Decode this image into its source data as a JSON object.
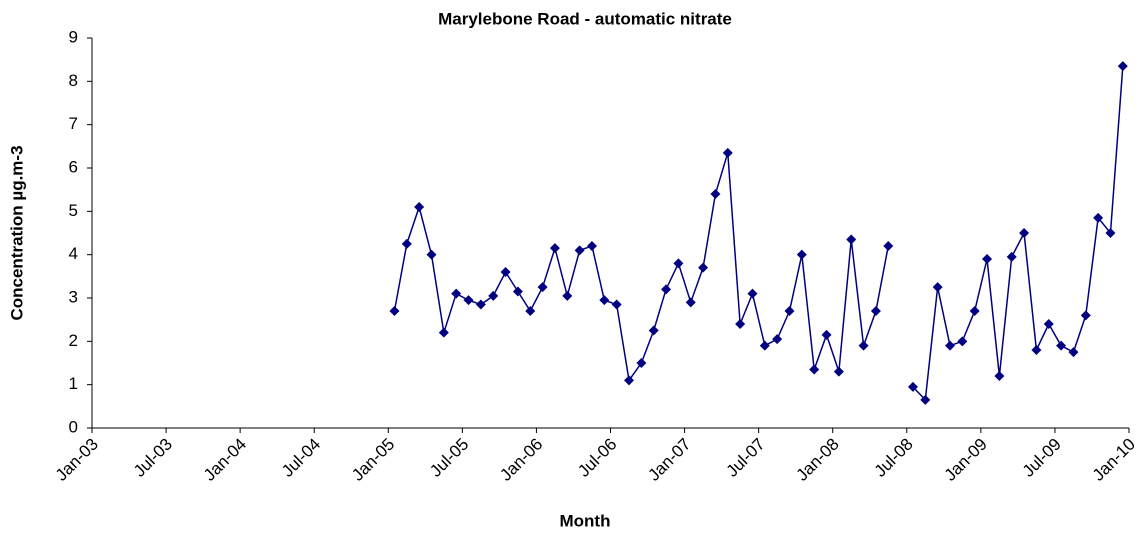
{
  "chart_data": {
    "type": "line",
    "title": "Marylebone Road - automatic nitrate",
    "x_label": "Month",
    "y_label": "Concentration µg.m-3",
    "categories": [
      "Jan-03",
      null,
      null,
      null,
      null,
      null,
      "Jul-03",
      null,
      null,
      null,
      null,
      null,
      "Jan-04",
      null,
      null,
      null,
      null,
      null,
      "Jul-04",
      null,
      null,
      null,
      null,
      null,
      "Jan-05",
      null,
      null,
      null,
      null,
      null,
      "Jul-05",
      null,
      null,
      null,
      null,
      null,
      "Jan-06",
      null,
      null,
      null,
      null,
      null,
      "Jul-06",
      null,
      null,
      null,
      null,
      null,
      "Jan-07",
      null,
      null,
      null,
      null,
      null,
      "Jul-07",
      null,
      null,
      null,
      null,
      null,
      "Jan-08",
      null,
      null,
      null,
      null,
      null,
      "Jul-08",
      null,
      null,
      null,
      null,
      null,
      "Jan-09",
      null,
      null,
      null,
      null,
      null,
      "Jul-09",
      null,
      null,
      null,
      null,
      null,
      "Jan-10"
    ],
    "series": [
      {
        "name": "Nitrate",
        "color": "#000080",
        "values": [
          null,
          null,
          null,
          null,
          null,
          null,
          null,
          null,
          null,
          null,
          null,
          null,
          null,
          null,
          null,
          null,
          null,
          null,
          null,
          null,
          null,
          null,
          null,
          null,
          2.7,
          4.25,
          5.1,
          4.0,
          2.2,
          3.1,
          2.95,
          2.85,
          3.05,
          3.6,
          3.15,
          2.7,
          3.25,
          4.15,
          3.05,
          4.1,
          4.2,
          2.95,
          2.85,
          1.1,
          1.5,
          2.25,
          3.2,
          3.8,
          2.9,
          3.7,
          5.4,
          6.35,
          2.4,
          3.1,
          1.9,
          2.05,
          2.7,
          4.0,
          1.35,
          2.15,
          1.3,
          4.35,
          1.9,
          2.7,
          4.2,
          null,
          0.95,
          0.65,
          3.25,
          1.9,
          2.0,
          2.7,
          3.9,
          1.2,
          3.95,
          4.5,
          1.8,
          2.4,
          1.9,
          1.75,
          2.6,
          4.85,
          4.5,
          8.35,
          null
        ]
      }
    ],
    "ylim": [
      0,
      9
    ],
    "yticks": [
      0,
      1,
      2,
      3,
      4,
      5,
      6,
      7,
      8,
      9
    ],
    "grid": false,
    "legend": false
  }
}
